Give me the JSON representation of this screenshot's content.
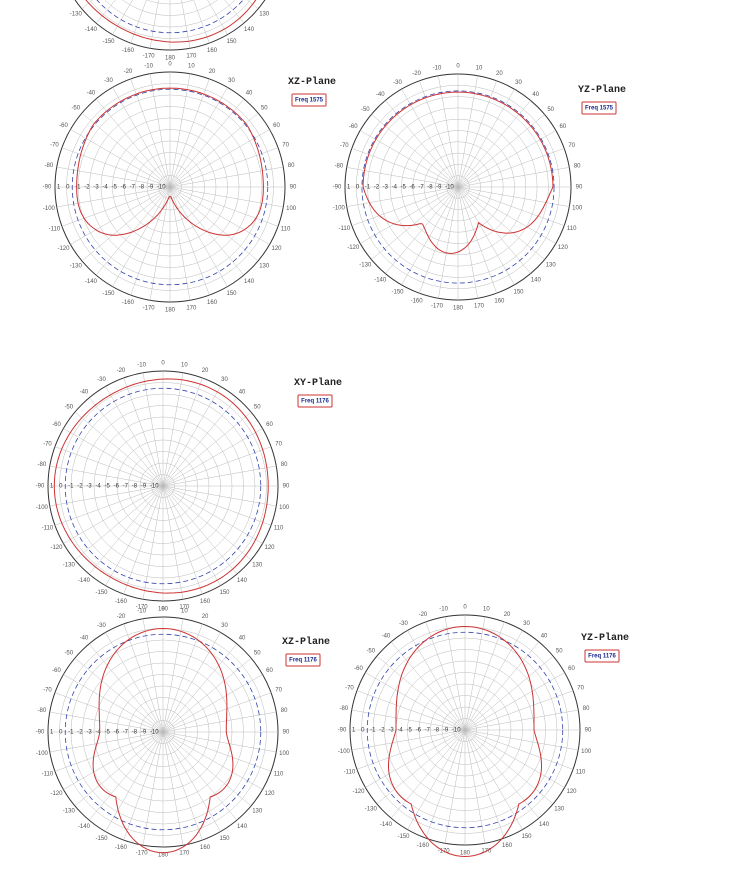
{
  "plots": [
    {
      "plane": "XZ-Plane",
      "freq": "Freq 1575"
    },
    {
      "plane": "YZ-Plane",
      "freq": "Freq 1575"
    },
    {
      "plane": "XY-Plane",
      "freq": "Freq 1176"
    },
    {
      "plane": "XZ-Plane",
      "freq": "Freq 1176"
    },
    {
      "plane": "YZ-Plane",
      "freq": "Freq 1176"
    }
  ],
  "angle_labels": [
    "0",
    "10",
    "20",
    "30",
    "40",
    "50",
    "60",
    "70",
    "80",
    "90",
    "100",
    "110",
    "120",
    "130",
    "140",
    "150",
    "160",
    "170",
    "180",
    "-170",
    "-160",
    "-150",
    "-140",
    "-130",
    "-120",
    "-110",
    "-100",
    "-90",
    "-80",
    "-70",
    "-60",
    "-50",
    "-40",
    "-30",
    "-20",
    "-10"
  ],
  "radial_labels": [
    "1",
    "0",
    "-1",
    "-2",
    "-3",
    "-4",
    "-5",
    "-6",
    "-7",
    "-8",
    "-9",
    "-10"
  ]
}
